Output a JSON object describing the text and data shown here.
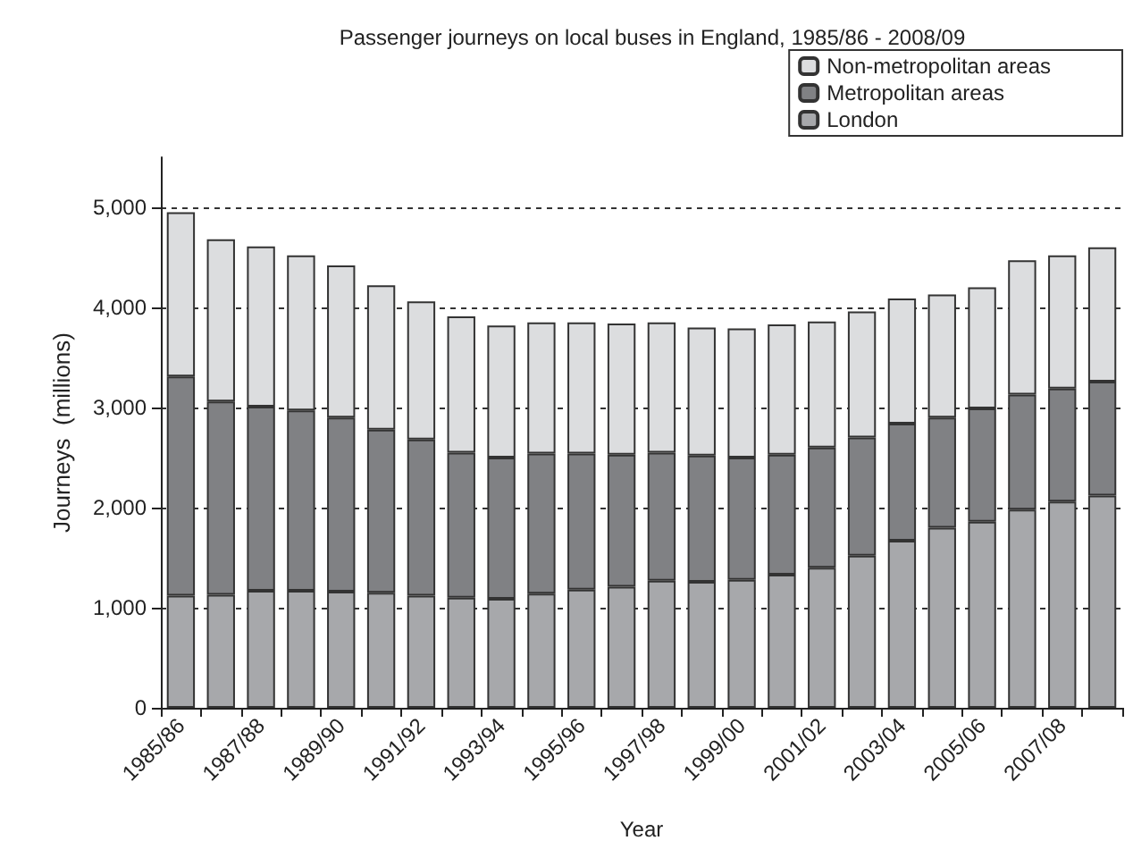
{
  "chart_data": {
    "type": "bar",
    "title": "Passenger journeys on local buses in England, 1985/86 - 2008/09",
    "xlabel": "Year",
    "ylabel": "Journeys  (millions)",
    "categories": [
      "1985/86",
      null,
      "1987/88",
      null,
      "1989/90",
      null,
      "1991/92",
      null,
      "1993/94",
      null,
      "1995/96",
      null,
      "1997/98",
      null,
      "1999/00",
      null,
      "2001/02",
      null,
      "2003/04",
      null,
      "2005/06",
      null,
      "2007/08",
      null
    ],
    "stacked": true,
    "series": [
      {
        "name": "London",
        "color": "#a7a8ab",
        "values": [
          1120,
          1130,
          1170,
          1170,
          1160,
          1150,
          1120,
          1100,
          1090,
          1140,
          1180,
          1210,
          1270,
          1260,
          1280,
          1330,
          1400,
          1520,
          1670,
          1800,
          1860,
          1980,
          2060,
          2120
        ]
      },
      {
        "name": "Metropolitan areas",
        "color": "#808184",
        "values": [
          2190,
          1930,
          1840,
          1800,
          1740,
          1630,
          1560,
          1450,
          1410,
          1400,
          1360,
          1320,
          1280,
          1260,
          1220,
          1200,
          1200,
          1180,
          1170,
          1100,
          1130,
          1150,
          1130,
          1140
        ]
      },
      {
        "name": "Non-metropolitan areas",
        "color": "#dcdddf",
        "values": [
          1640,
          1620,
          1600,
          1550,
          1520,
          1440,
          1380,
          1360,
          1320,
          1310,
          1310,
          1310,
          1300,
          1280,
          1290,
          1300,
          1260,
          1260,
          1250,
          1230,
          1210,
          1340,
          1330,
          1340
        ]
      }
    ],
    "ylim": [
      0,
      5500
    ],
    "yticks": [
      0,
      {
        "value": 1000,
        "label": "1,000"
      },
      {
        "value": 2000,
        "label": "2,000"
      },
      {
        "value": 3000,
        "label": "3,000"
      },
      {
        "value": 4000,
        "label": "4,000"
      },
      {
        "value": 5000,
        "label": "5,000"
      }
    ],
    "grid": "y",
    "legend": "top right"
  }
}
